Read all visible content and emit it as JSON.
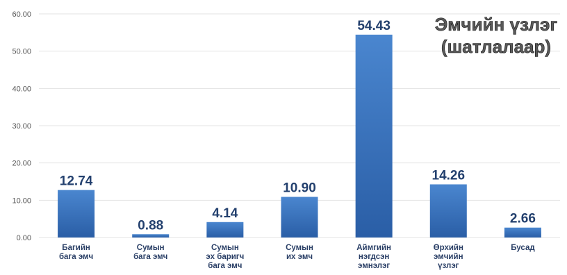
{
  "chart_data": {
    "type": "bar",
    "title_lines": [
      "Эмчийн үзлэг",
      "(шатлалаар)"
    ],
    "categories": [
      [
        "Багийн",
        "бага эмч"
      ],
      [
        "Сумын",
        "бага эмч"
      ],
      [
        "Сумын",
        "эх баригч",
        "бага эмч"
      ],
      [
        "Сумын",
        "их эмч"
      ],
      [
        "Аймгийн",
        "нэгдсэн",
        "эмнэлэг"
      ],
      [
        "Өрхийн",
        "эмчийн",
        "үзлэг"
      ],
      [
        "Бусад"
      ]
    ],
    "values": [
      12.74,
      0.88,
      4.14,
      10.9,
      54.43,
      14.26,
      2.66
    ],
    "data_labels": [
      "12.74",
      "0.88",
      "4.14",
      "10.90",
      "54.43",
      "14.26",
      "2.66"
    ],
    "yticks": [
      "0.00",
      "10.00",
      "20.00",
      "30.00",
      "40.00",
      "50.00",
      "60.00"
    ],
    "ylim": [
      0,
      60
    ],
    "grid": true,
    "colors": {
      "bar_top": "#4a86cf",
      "bar_bottom": "#2a5ea6",
      "grid": "#e3e3e3",
      "label": "#23406e"
    }
  }
}
